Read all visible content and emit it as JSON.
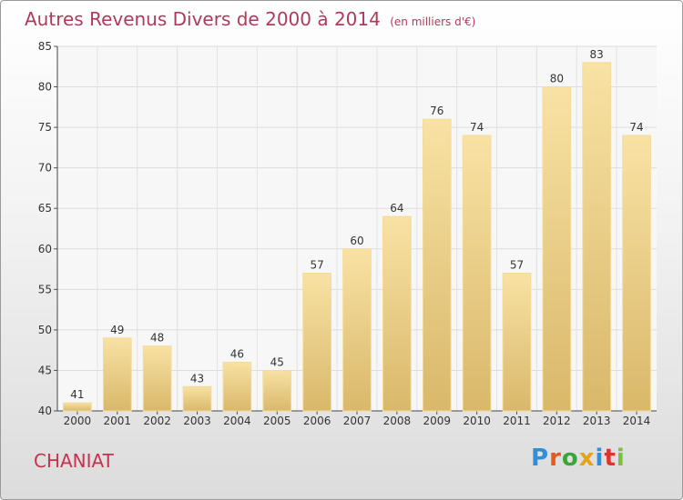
{
  "header": {
    "title": "Autres Revenus Divers de 2000 à 2014",
    "subtitle": "(en milliers d'€)"
  },
  "commune": "CHANIAT",
  "logo": {
    "text": "Proxiti",
    "letter_colors": [
      "#2f8fd8",
      "#e85a1c",
      "#3aa63a",
      "#e5a21a",
      "#2f8fd8",
      "#e0332f",
      "#7fbf3f"
    ]
  },
  "chart_data": {
    "type": "bar",
    "title": "Autres Revenus Divers de 2000 à 2014",
    "xlabel": "",
    "ylabel": "",
    "categories": [
      "2000",
      "2001",
      "2002",
      "2003",
      "2004",
      "2005",
      "2006",
      "2007",
      "2008",
      "2009",
      "2010",
      "2011",
      "2012",
      "2013",
      "2014"
    ],
    "values": [
      41,
      49,
      48,
      43,
      46,
      45,
      57,
      60,
      64,
      76,
      74,
      57,
      80,
      83,
      74
    ],
    "data_labels": [
      "41",
      "49",
      "48",
      "43",
      "46",
      "45",
      "57",
      "60",
      "64",
      "76",
      "74",
      "57",
      "80",
      "83",
      "74"
    ],
    "ylim": [
      40,
      85
    ],
    "yticks": [
      40,
      45,
      50,
      55,
      60,
      65,
      70,
      75,
      80,
      85
    ],
    "grid": true,
    "bar_color_light": "#f8e2a4",
    "bar_color_dark": "#d9b86a"
  }
}
